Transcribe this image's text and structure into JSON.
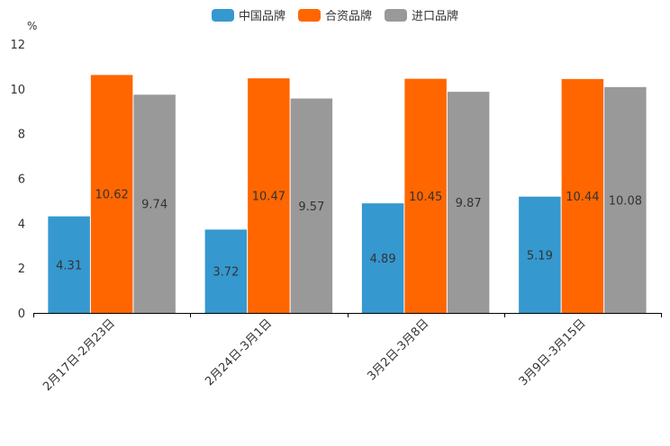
{
  "chart_data": {
    "type": "bar",
    "unit": "%",
    "categories": [
      "2月17日-2月23日",
      "2月24日-3月1日",
      "3月2日-3月8日",
      "3月9日-3月15日"
    ],
    "series": [
      {
        "name": "中国品牌",
        "color": "#3598cf",
        "values": [
          4.31,
          3.72,
          4.89,
          5.19
        ],
        "labels": [
          "4.31",
          "3.72",
          "4.89",
          "5.19"
        ]
      },
      {
        "name": "合资品牌",
        "color": "#ff6600",
        "values": [
          10.62,
          10.47,
          10.45,
          10.44
        ],
        "labels": [
          "10.62",
          "10.47",
          "10.45",
          "10.44"
        ]
      },
      {
        "name": "进口品牌",
        "color": "#999999",
        "values": [
          9.74,
          9.57,
          9.87,
          10.08
        ],
        "labels": [
          "9.74",
          "9.57",
          "9.87",
          "10.08"
        ]
      }
    ],
    "yticks": [
      "0",
      "2",
      "4",
      "6",
      "8",
      "10",
      "12"
    ],
    "ylim": [
      0,
      12
    ],
    "legend_position": "top-center"
  }
}
